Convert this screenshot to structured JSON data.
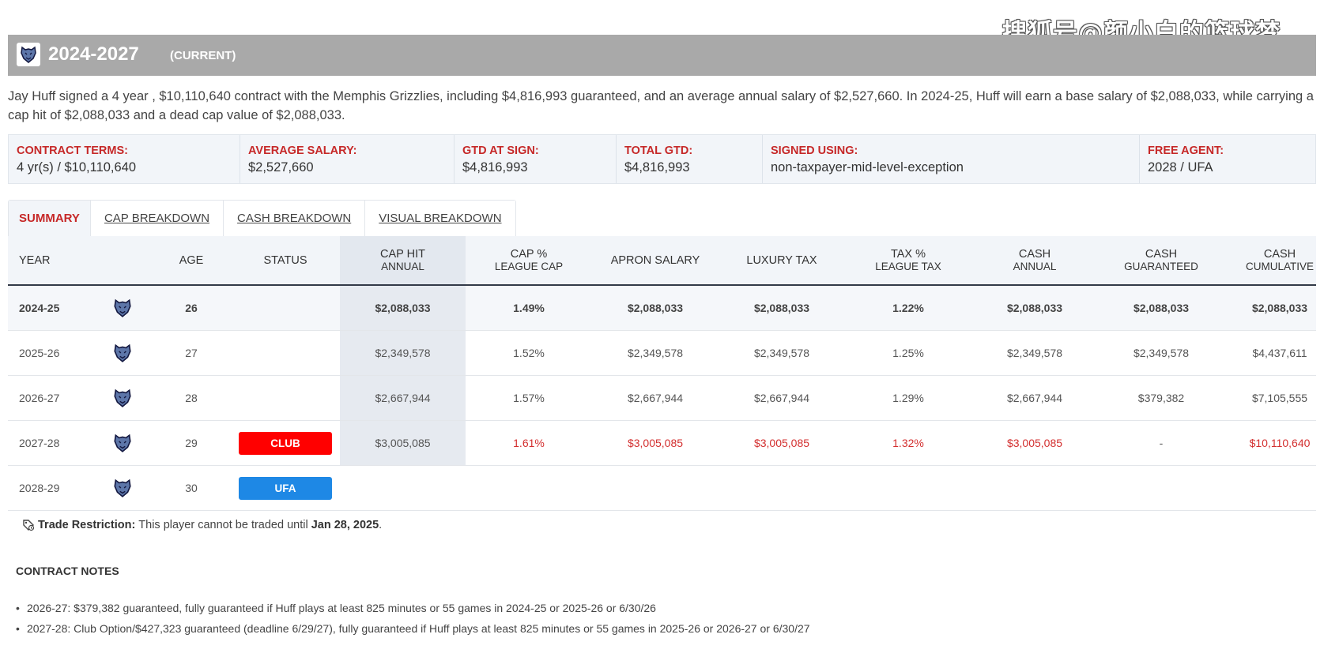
{
  "watermark": "搜狐号@颜小白的篮球梦",
  "header": {
    "title": "2024-2027",
    "status": "(CURRENT)"
  },
  "summary": "Jay Huff signed a 4 year , $10,110,640 contract with the Memphis Grizzlies, including $4,816,993 guaranteed, and an average annual salary of $2,527,660. In 2024-25, Huff will earn a base salary of $2,088,033, while carrying a cap hit of $2,088,033 and a dead cap value of $2,088,033.",
  "terms": [
    {
      "label": "CONTRACT TERMS:",
      "value": "4 yr(s) / $10,110,640"
    },
    {
      "label": "AVERAGE SALARY:",
      "value": "$2,527,660"
    },
    {
      "label": "GTD AT SIGN:",
      "value": "$4,816,993"
    },
    {
      "label": "TOTAL GTD:",
      "value": "$4,816,993"
    },
    {
      "label": "SIGNED USING:",
      "value": "non-taxpayer-mid-level-exception"
    },
    {
      "label": "FREE AGENT:",
      "value": "2028 / UFA"
    }
  ],
  "tabs": [
    "SUMMARY",
    "CAP BREAKDOWN",
    "CASH BREAKDOWN",
    "VISUAL BREAKDOWN"
  ],
  "columns": {
    "year": "YEAR",
    "age": "AGE",
    "status": "STATUS",
    "cap_hit": [
      "CAP HIT",
      "ANNUAL"
    ],
    "cap_pct": [
      "CAP %",
      "LEAGUE CAP"
    ],
    "apron": "APRON SALARY",
    "lux": "LUXURY TAX",
    "tax_pct": [
      "TAX %",
      "LEAGUE TAX"
    ],
    "cash_annual": [
      "CASH",
      "ANNUAL"
    ],
    "cash_gtd": [
      "CASH",
      "GUARANTEED"
    ],
    "cash_cum": [
      "CASH",
      "CUMULATIVE"
    ]
  },
  "rows": [
    {
      "year": "2024-25",
      "age": "26",
      "status": "",
      "cap_hit": "$2,088,033",
      "cap_pct": "1.49%",
      "apron": "$2,088,033",
      "lux": "$2,088,033",
      "tax_pct": "1.22%",
      "cash_annual": "$2,088,033",
      "cash_gtd": "$2,088,033",
      "cash_cum": "$2,088,033"
    },
    {
      "year": "2025-26",
      "age": "27",
      "status": "",
      "cap_hit": "$2,349,578",
      "cap_pct": "1.52%",
      "apron": "$2,349,578",
      "lux": "$2,349,578",
      "tax_pct": "1.25%",
      "cash_annual": "$2,349,578",
      "cash_gtd": "$2,349,578",
      "cash_cum": "$4,437,611"
    },
    {
      "year": "2026-27",
      "age": "28",
      "status": "",
      "cap_hit": "$2,667,944",
      "cap_pct": "1.57%",
      "apron": "$2,667,944",
      "lux": "$2,667,944",
      "tax_pct": "1.29%",
      "cash_annual": "$2,667,944",
      "cash_gtd": "$379,382",
      "cash_cum": "$7,105,555"
    },
    {
      "year": "2027-28",
      "age": "29",
      "status": "CLUB",
      "cap_hit": "$3,005,085",
      "cap_pct": "1.61%",
      "apron": "$3,005,085",
      "lux": "$3,005,085",
      "tax_pct": "1.32%",
      "cash_annual": "$3,005,085",
      "cash_gtd": "-",
      "cash_cum": "$10,110,640"
    },
    {
      "year": "2028-29",
      "age": "30",
      "status": "UFA"
    }
  ],
  "trade": {
    "label": "Trade Restriction:",
    "text": "This player cannot be traded until",
    "date": "Jan 28, 2025",
    "end": "."
  },
  "notes_title": "CONTRACT NOTES",
  "notes": [
    "2026-27: $379,382 guaranteed, fully guaranteed if Huff plays at least 825 minutes or 55 games in 2024-25 or 2025-26 or 6/30/26",
    "2027-28: Club Option/$427,323 guaranteed (deadline 6/29/27), fully guaranteed if Huff plays at least 825 minutes or 55 games in 2025-26 or 2026-27 or 6/30/27"
  ],
  "colors": {
    "club": "#ff0000",
    "ufa": "#1e88e5",
    "accent": "#c62828",
    "option_text": "#d32f2f"
  }
}
